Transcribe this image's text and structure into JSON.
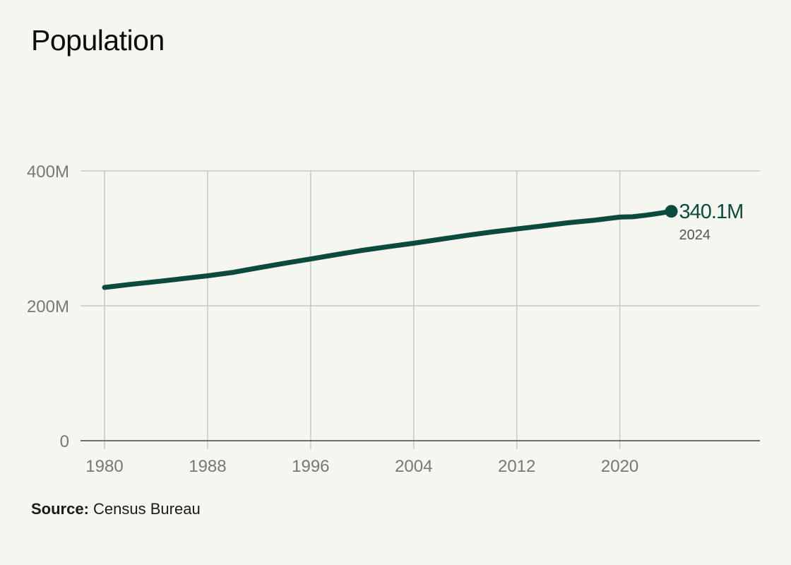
{
  "title": "Population",
  "source": {
    "label": "Source:",
    "text": "Census Bureau"
  },
  "colors": {
    "background": "#f6f6f1",
    "line": "#0c4a3b",
    "grid": "#c8c8c4",
    "axis": "#6e6e6a",
    "tick_text": "#777773"
  },
  "chart_data": {
    "type": "line",
    "title": "Population",
    "xlabel": "",
    "ylabel": "",
    "xlim": [
      1980,
      2030
    ],
    "ylim": [
      0,
      400
    ],
    "y_unit": "M",
    "x_ticks": [
      1980,
      1988,
      1996,
      2004,
      2012,
      2020
    ],
    "x_tick_labels": [
      "1980",
      "1988",
      "1996",
      "2004",
      "2012",
      "2020"
    ],
    "y_ticks": [
      0,
      200,
      400
    ],
    "y_tick_labels": [
      "0",
      "200M",
      "400M"
    ],
    "grid": true,
    "series": [
      {
        "x": [
          1980,
          1982,
          1984,
          1986,
          1988,
          1990,
          1992,
          1994,
          1996,
          1998,
          2000,
          2002,
          2004,
          2006,
          2008,
          2010,
          2012,
          2014,
          2016,
          2018,
          2020,
          2021,
          2022,
          2023,
          2024
        ],
        "values": [
          227.2,
          231.7,
          235.8,
          240.1,
          244.5,
          249.6,
          256.5,
          263.1,
          269.4,
          275.9,
          282.2,
          287.6,
          292.8,
          298.4,
          304.1,
          309.3,
          313.9,
          318.4,
          323.1,
          326.8,
          331.5,
          332.0,
          334.2,
          337.0,
          340.1
        ]
      }
    ],
    "end_label": {
      "value": "340.1M",
      "year": "2024"
    }
  }
}
